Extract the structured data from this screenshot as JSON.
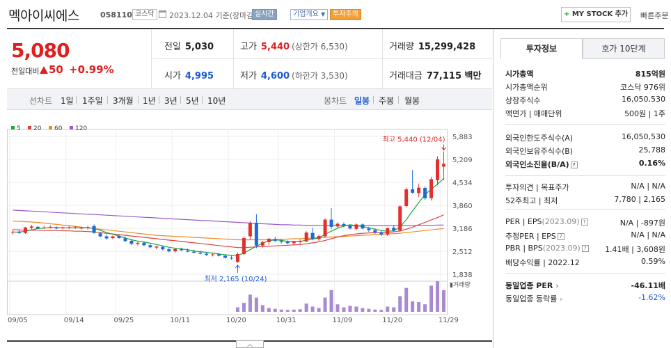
{
  "header": {
    "name": "멕아이씨에스",
    "code": "058110",
    "market": "코스닥",
    "date_text": "2023.12.04 기준(장마감)",
    "realtime": "실시간",
    "corp_overview": "기업개요",
    "warning": "투자주의",
    "mystock_plus": "+",
    "mystock_label": "MY STOCK 추가",
    "quick_order": "빠른주문"
  },
  "summary": {
    "price": "5,080",
    "change_label": "전일대비",
    "change_value": "50",
    "change_pct": "+0.99%",
    "prev_close_label": "전일",
    "prev_close": "5,030",
    "open_label": "시가",
    "open": "4,995",
    "high_label": "고가",
    "high": "5,440",
    "upper_limit": "(상한가 6,530)",
    "low_label": "저가",
    "low": "4,600",
    "lower_limit": "(하한가 3,530)",
    "volume_label": "거래량",
    "volume": "15,299,428",
    "amount_label": "거래대금",
    "amount": "77,115 백만"
  },
  "toolbar": {
    "line_label": "선차트",
    "periods": [
      "1일",
      "1주일",
      "3개월",
      "1년",
      "3년",
      "5년",
      "10년"
    ],
    "candle_label": "봉차트",
    "candle_periods": [
      "일봉",
      "주봉",
      "월봉"
    ],
    "active_candle": "일봉"
  },
  "chart_data": {
    "type": "candlestick",
    "legend": [
      {
        "name": "5",
        "color": "#1aa83a"
      },
      {
        "name": "20",
        "color": "#e04040"
      },
      {
        "name": "60",
        "color": "#f08a20"
      },
      {
        "name": "120",
        "color": "#9a58c8"
      }
    ],
    "y_ticks": [
      "5,883",
      "5,209",
      "4,534",
      "3,860",
      "3,186",
      "2,512",
      "1,838"
    ],
    "y_range": [
      1838,
      5883
    ],
    "x_labels": [
      "09/05",
      "09/14",
      "09/25",
      "10/11",
      "10/20",
      "10/31",
      "11/09",
      "11/20",
      "11/29"
    ],
    "high_annotation": "최고 5,440 (12/04)",
    "low_annotation": "최저 2,165 (10/24)",
    "volume_label": "거래량",
    "candles": [
      [
        3060,
        3150,
        3000,
        3080
      ],
      [
        3090,
        3140,
        3020,
        3050
      ],
      [
        3050,
        3230,
        3020,
        3210
      ],
      [
        3200,
        3290,
        3150,
        3240
      ],
      [
        3230,
        3260,
        3170,
        3180
      ],
      [
        3200,
        3260,
        3170,
        3210
      ],
      [
        3220,
        3270,
        3180,
        3230
      ],
      [
        3200,
        3240,
        3160,
        3190
      ],
      [
        3190,
        3240,
        3150,
        3210
      ],
      [
        3200,
        3260,
        3160,
        3210
      ],
      [
        3210,
        3260,
        3170,
        3190
      ],
      [
        3180,
        3230,
        3150,
        3200
      ],
      [
        3190,
        3260,
        3140,
        3220
      ],
      [
        3250,
        3300,
        3030,
        3050
      ],
      [
        3040,
        3080,
        2920,
        2950
      ],
      [
        2950,
        3000,
        2850,
        2890
      ],
      [
        2900,
        2970,
        2860,
        2950
      ],
      [
        2960,
        3010,
        2880,
        2900
      ],
      [
        2890,
        2940,
        2790,
        2810
      ],
      [
        2820,
        2860,
        2700,
        2730
      ],
      [
        2730,
        2790,
        2680,
        2760
      ],
      [
        2760,
        2800,
        2660,
        2690
      ],
      [
        2690,
        2730,
        2600,
        2630
      ],
      [
        2620,
        2680,
        2570,
        2650
      ],
      [
        2640,
        2680,
        2540,
        2570
      ],
      [
        2570,
        2610,
        2480,
        2510
      ],
      [
        2510,
        2600,
        2470,
        2580
      ],
      [
        2580,
        2620,
        2520,
        2540
      ],
      [
        2530,
        2590,
        2480,
        2500
      ],
      [
        2500,
        2560,
        2450,
        2470
      ],
      [
        2470,
        2520,
        2420,
        2440
      ],
      [
        2440,
        2490,
        2380,
        2400
      ],
      [
        2400,
        2450,
        2360,
        2420
      ],
      [
        2420,
        2460,
        2360,
        2380
      ],
      [
        2380,
        2420,
        2300,
        2320
      ],
      [
        2320,
        2380,
        2260,
        2300
      ],
      [
        2200,
        2480,
        2165,
        2430
      ],
      [
        2430,
        2950,
        2400,
        2900
      ],
      [
        2950,
        3400,
        2850,
        3350
      ],
      [
        3350,
        3600,
        2600,
        2680
      ],
      [
        2680,
        2820,
        2620,
        2780
      ],
      [
        2780,
        2900,
        2700,
        2880
      ],
      [
        2870,
        2930,
        2780,
        2820
      ],
      [
        2820,
        2870,
        2740,
        2790
      ],
      [
        2790,
        2830,
        2720,
        2750
      ],
      [
        2750,
        2820,
        2700,
        2790
      ],
      [
        2790,
        2860,
        2730,
        2800
      ],
      [
        2800,
        3100,
        2780,
        3060
      ],
      [
        3050,
        3200,
        2830,
        2880
      ],
      [
        2870,
        3000,
        2820,
        2960
      ],
      [
        2950,
        3480,
        2920,
        3440
      ],
      [
        3440,
        3780,
        3160,
        3230
      ],
      [
        3240,
        3360,
        3200,
        3320
      ],
      [
        3310,
        3360,
        3220,
        3260
      ],
      [
        3250,
        3280,
        3150,
        3180
      ],
      [
        3170,
        3330,
        3120,
        3300
      ],
      [
        3300,
        3330,
        3160,
        3180
      ],
      [
        3180,
        3230,
        3080,
        3130
      ],
      [
        3130,
        3180,
        3020,
        3060
      ],
      [
        3070,
        3120,
        2960,
        3000
      ],
      [
        3000,
        3210,
        2960,
        3190
      ],
      [
        3200,
        3280,
        3090,
        3120
      ],
      [
        3120,
        3870,
        3080,
        3830
      ],
      [
        3840,
        4380,
        3800,
        4330
      ],
      [
        4330,
        4900,
        4200,
        4230
      ],
      [
        4220,
        4500,
        4100,
        4380
      ],
      [
        4370,
        4420,
        4020,
        4070
      ],
      [
        4070,
        4700,
        4000,
        4630
      ],
      [
        4600,
        5300,
        4450,
        5210
      ],
      [
        4995,
        5440,
        4600,
        5080
      ]
    ],
    "volumes": [
      0,
      0,
      0,
      0,
      0,
      0,
      0,
      0,
      0,
      0,
      0,
      0,
      0,
      0,
      0,
      0,
      0,
      0,
      0,
      0,
      0,
      0,
      0,
      0,
      0,
      0,
      0,
      0,
      0,
      0,
      0,
      0,
      0,
      0,
      0,
      0,
      12,
      24,
      46,
      38,
      18,
      10,
      8,
      6,
      5,
      6,
      7,
      22,
      14,
      10,
      38,
      58,
      20,
      12,
      16,
      14,
      10,
      8,
      6,
      5,
      14,
      12,
      42,
      64,
      28,
      26,
      20,
      70,
      82,
      58
    ],
    "ma5": [
      3080,
      3070,
      3100,
      3140,
      3180,
      3190,
      3210,
      3210,
      3200,
      3200,
      3200,
      3200,
      3200,
      3180,
      3130,
      3060,
      3010,
      2960,
      2900,
      2850,
      2810,
      2780,
      2750,
      2710,
      2670,
      2630,
      2600,
      2580,
      2560,
      2520,
      2500,
      2480,
      2460,
      2430,
      2410,
      2390,
      2390,
      2460,
      2560,
      2660,
      2750,
      2820,
      2850,
      2830,
      2800,
      2800,
      2800,
      2840,
      2870,
      2900,
      3010,
      3100,
      3190,
      3250,
      3290,
      3260,
      3240,
      3200,
      3160,
      3120,
      3100,
      3110,
      3230,
      3440,
      3700,
      3940,
      4180,
      4330,
      4480,
      4650
    ],
    "ma20": [
      3150,
      3140,
      3130,
      3130,
      3130,
      3120,
      3120,
      3120,
      3110,
      3110,
      3100,
      3100,
      3090,
      3080,
      3060,
      3040,
      3020,
      3000,
      2980,
      2960,
      2940,
      2920,
      2900,
      2880,
      2860,
      2840,
      2820,
      2800,
      2780,
      2760,
      2740,
      2720,
      2700,
      2680,
      2660,
      2640,
      2620,
      2620,
      2630,
      2640,
      2650,
      2660,
      2670,
      2680,
      2690,
      2700,
      2710,
      2730,
      2760,
      2790,
      2830,
      2880,
      2930,
      2970,
      3000,
      3020,
      3040,
      3050,
      3060,
      3060,
      3060,
      3080,
      3110,
      3160,
      3220,
      3290,
      3360,
      3430,
      3500,
      3580
    ],
    "ma60": [
      3400,
      3390,
      3380,
      3370,
      3360,
      3340,
      3320,
      3300,
      3280,
      3260,
      3240,
      3220,
      3200,
      3180,
      3160,
      3140,
      3120,
      3100,
      3080,
      3060,
      3040,
      3020,
      3000,
      2980,
      2970,
      2960,
      2950,
      2940,
      2930,
      2920,
      2910,
      2900,
      2890,
      2880,
      2870,
      2860,
      2850,
      2850,
      2850,
      2850,
      2850,
      2850,
      2860,
      2860,
      2870,
      2880,
      2880,
      2890,
      2900,
      2910,
      2920,
      2930,
      2940,
      2950,
      2960,
      2970,
      2980,
      2990,
      3000,
      3010,
      3020,
      3030,
      3040,
      3060,
      3080,
      3100,
      3120,
      3140,
      3160,
      3180
    ],
    "ma120": [
      3720,
      3710,
      3700,
      3690,
      3680,
      3670,
      3660,
      3650,
      3640,
      3630,
      3620,
      3610,
      3600,
      3590,
      3580,
      3570,
      3560,
      3550,
      3540,
      3530,
      3520,
      3510,
      3500,
      3490,
      3480,
      3470,
      3460,
      3450,
      3440,
      3430,
      3420,
      3410,
      3400,
      3390,
      3380,
      3370,
      3360,
      3350,
      3340,
      3330,
      3320,
      3310,
      3300,
      3290,
      3290,
      3280,
      3280,
      3270,
      3270,
      3270,
      3260,
      3260,
      3260,
      3260,
      3260,
      3260,
      3260,
      3260,
      3260,
      3260,
      3260,
      3260,
      3260,
      3260,
      3260,
      3270,
      3270,
      3270,
      3280,
      3280
    ]
  },
  "right_panel": {
    "tab_invest": "투자정보",
    "tab_orderbook": "호가 10단계",
    "g1": [
      {
        "l": "시가총액",
        "r": "815억원",
        "bold": true
      },
      {
        "l": "시가총액순위",
        "r": "코스닥 976위"
      },
      {
        "l": "상장주식수",
        "r": "16,050,530"
      },
      {
        "l": "액면가 | 매매단위",
        "r": "500원 | 1주"
      }
    ],
    "g2": [
      {
        "l": "외국인한도주식수(A)",
        "r": "16,050,530"
      },
      {
        "l": "외국인보유주식수(B)",
        "r": "25,788"
      },
      {
        "l": "외국인소진율(B/A)",
        "r": "0.16%",
        "bold": true
      }
    ],
    "g3": [
      {
        "l": "투자의견 | 목표주가",
        "r": "N/A | N/A"
      },
      {
        "l": "52주최고 | 최저",
        "r": "7,780 | 2,165"
      }
    ],
    "g4": [
      {
        "l": "PER | EPS",
        "gray": "(2023.09)",
        "r": "N/A | -897원"
      },
      {
        "l": "추정PER | EPS",
        "r": "N/A | N/A"
      },
      {
        "l": "PBR | BPS",
        "gray": "(2023.09)",
        "r": "1.41배 | 3,608원"
      },
      {
        "l": "배당수익률 | 2022.12",
        "r": "0.59%"
      }
    ],
    "g5": [
      {
        "l": "동일업종 PER",
        "r": "-46.11배",
        "bold": true
      },
      {
        "l": "동일업종 등락률",
        "r": "-1.62%",
        "blue": true
      }
    ]
  }
}
